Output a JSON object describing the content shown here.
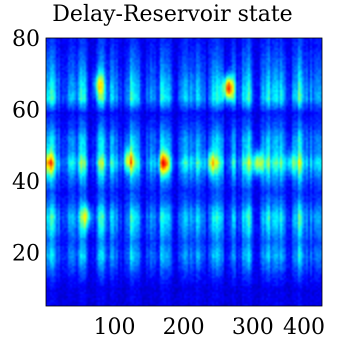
{
  "chart_data": {
    "type": "heatmap",
    "title": "Delay-Reservoir state",
    "xlabel": "",
    "ylabel": "",
    "xlim": [
      1,
      400
    ],
    "ylim": [
      5,
      80
    ],
    "x_ticks": [
      "100",
      "200",
      "300",
      "400"
    ],
    "y_ticks": [
      "20",
      "40",
      "60",
      "80"
    ],
    "colormap": "jet",
    "grid": false,
    "legend": "none",
    "value_range": [
      0,
      1
    ],
    "row_profile": [
      {
        "y": 10,
        "level": 0.05
      },
      {
        "y": 14,
        "level": 0.15
      },
      {
        "y": 19,
        "level": 0.33
      },
      {
        "y": 23,
        "level": 0.22
      },
      {
        "y": 27,
        "level": 0.35
      },
      {
        "y": 30,
        "level": 0.42
      },
      {
        "y": 34,
        "level": 0.22
      },
      {
        "y": 37,
        "level": 0.15
      },
      {
        "y": 41,
        "level": 0.3
      },
      {
        "y": 45,
        "level": 0.55
      },
      {
        "y": 48,
        "level": 0.35
      },
      {
        "y": 52,
        "level": 0.32
      },
      {
        "y": 55,
        "level": 0.2
      },
      {
        "y": 59,
        "level": 0.1
      },
      {
        "y": 63,
        "level": 0.42
      },
      {
        "y": 67,
        "level": 0.35
      },
      {
        "y": 71,
        "level": 0.25
      },
      {
        "y": 75,
        "level": 0.18
      },
      {
        "y": 79,
        "level": 0.12
      }
    ],
    "hotspots": [
      {
        "x": 265,
        "y": 66,
        "value": 0.97
      },
      {
        "x": 172,
        "y": 45,
        "value": 0.7
      },
      {
        "x": 307,
        "y": 45,
        "value": 0.72
      },
      {
        "x": 5,
        "y": 45,
        "value": 0.6
      },
      {
        "x": 78,
        "y": 67,
        "value": 0.6
      },
      {
        "x": 60,
        "y": 30,
        "value": 0.58
      },
      {
        "x": 120,
        "y": 46,
        "value": 0.6
      },
      {
        "x": 240,
        "y": 45,
        "value": 0.55
      },
      {
        "x": 355,
        "y": 45,
        "value": 0.5
      }
    ]
  }
}
